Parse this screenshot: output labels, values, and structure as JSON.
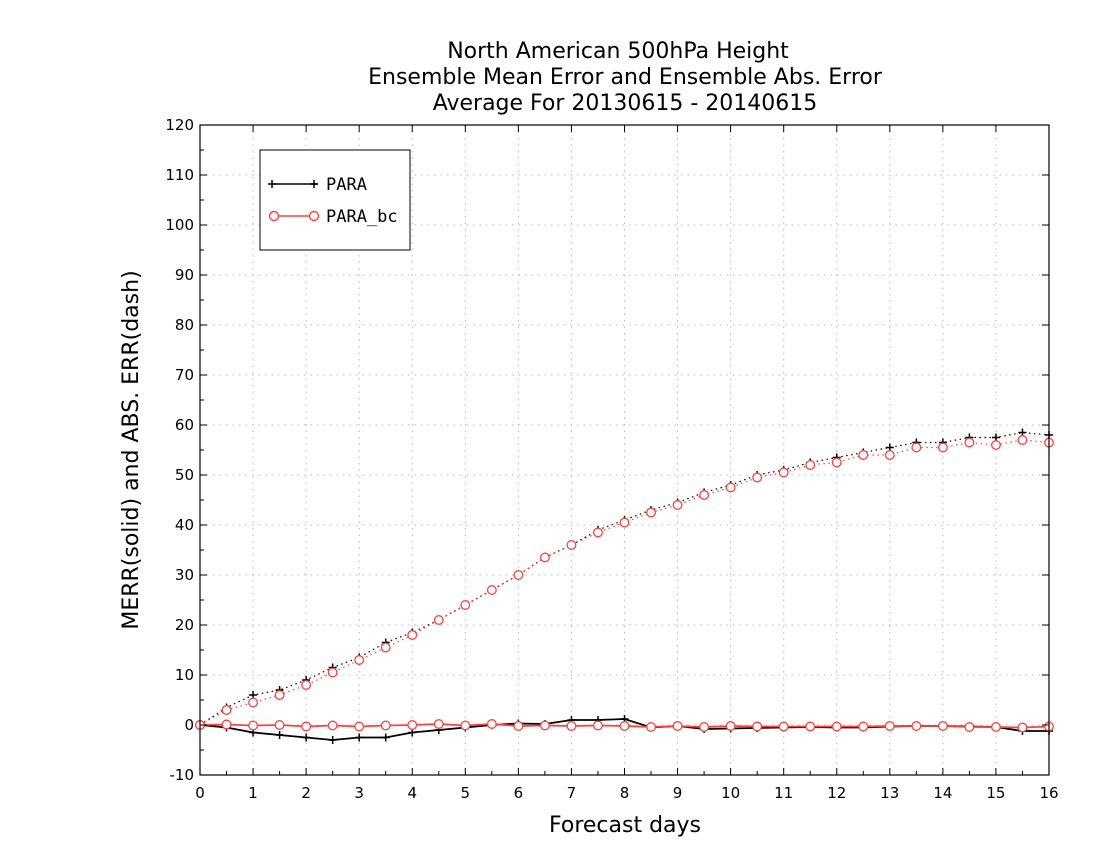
{
  "chart_data": {
    "type": "line",
    "title_lines": [
      "North American 500hPa Height",
      "Ensemble Mean Error and Ensemble Abs. Error",
      "Average For 20130615 - 20140615"
    ],
    "xlabel": "Forecast days",
    "ylabel": "MERR(solid) and ABS. ERR(dash)",
    "xlim": [
      0,
      16
    ],
    "ylim": [
      -10,
      120
    ],
    "xticks": [
      0,
      1,
      2,
      3,
      4,
      5,
      6,
      7,
      8,
      9,
      10,
      11,
      12,
      13,
      14,
      15,
      16
    ],
    "yticks": [
      -10,
      0,
      10,
      20,
      30,
      40,
      50,
      60,
      70,
      80,
      90,
      100,
      110,
      120
    ],
    "grid": true,
    "legend_position": "top-left",
    "x": [
      0,
      0.5,
      1,
      1.5,
      2,
      2.5,
      3,
      3.5,
      4,
      4.5,
      5,
      5.5,
      6,
      6.5,
      7,
      7.5,
      8,
      8.5,
      9,
      9.5,
      10,
      10.5,
      11,
      11.5,
      12,
      12.5,
      13,
      13.5,
      14,
      14.5,
      15,
      15.5,
      16
    ],
    "series": [
      {
        "name": "PARA",
        "color": "#000000",
        "marker": "plus",
        "merr": [
          0,
          -0.5,
          -1.5,
          -2,
          -2.5,
          -3,
          -2.5,
          -2.5,
          -1.5,
          -1,
          -0.5,
          0,
          0.3,
          0.2,
          1,
          1,
          1.2,
          -0.5,
          -0.2,
          -0.8,
          -0.7,
          -0.6,
          -0.5,
          -0.4,
          -0.5,
          -0.5,
          -0.3,
          -0.2,
          -0.2,
          -0.3,
          -0.4,
          -1.2,
          -1.2
        ],
        "abs_err": [
          0,
          3.5,
          6,
          7,
          9,
          11.5,
          13.5,
          16.5,
          18.5,
          21,
          24,
          27,
          30,
          33.5,
          36,
          39,
          41,
          43,
          44.5,
          46.5,
          48,
          50,
          51,
          52.5,
          53.5,
          54.5,
          55.5,
          56.5,
          56.5,
          57.5,
          57.5,
          58.5,
          58
        ]
      },
      {
        "name": "PARA_bc",
        "color": "#ff4040",
        "marker": "circle",
        "merr": [
          0,
          0.1,
          -0.1,
          0,
          -0.3,
          -0.1,
          -0.3,
          -0.1,
          0,
          0.2,
          -0.1,
          0.2,
          -0.2,
          -0.1,
          -0.2,
          -0.1,
          -0.2,
          -0.4,
          -0.2,
          -0.4,
          -0.2,
          -0.3,
          -0.3,
          -0.3,
          -0.3,
          -0.3,
          -0.2,
          -0.2,
          -0.2,
          -0.4,
          -0.4,
          -0.5,
          -0.3
        ],
        "abs_err": [
          0,
          3,
          4.5,
          6,
          8,
          10.5,
          13,
          15.5,
          18,
          21,
          24,
          27,
          30,
          33.5,
          36,
          38.5,
          40.5,
          42.5,
          44,
          46,
          47.5,
          49.5,
          50.5,
          52,
          52.5,
          54,
          54,
          55.5,
          55.5,
          56.5,
          56,
          57,
          56.5
        ]
      }
    ]
  }
}
